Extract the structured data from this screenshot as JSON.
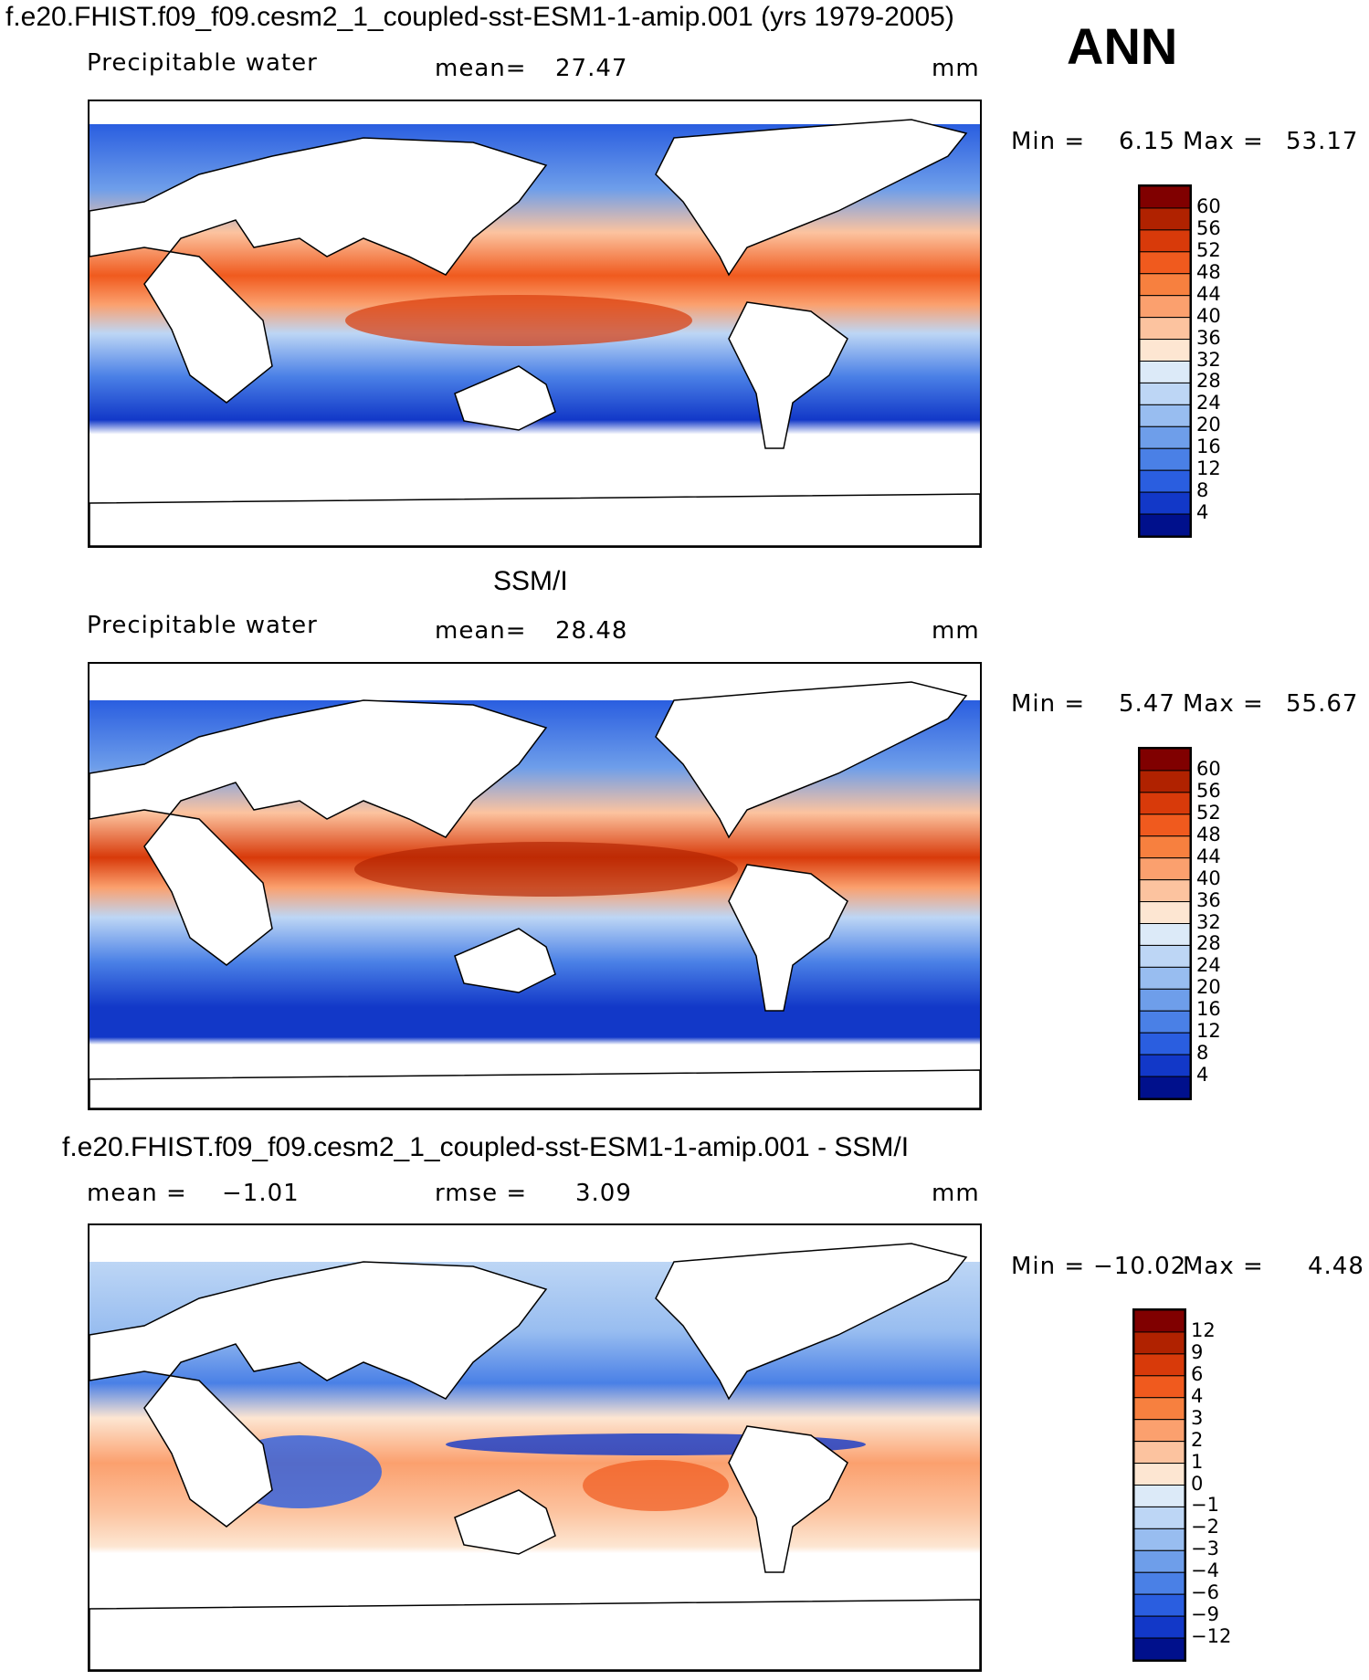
{
  "figure": {
    "title": "f.e20.FHIST.f09_f09.cesm2_1_coupled-sst-ESM1-1-amip.001 (yrs 1979-2005)",
    "season": "ANN"
  },
  "panels": [
    {
      "id": "model",
      "heading": "",
      "variable": "Precipitable water",
      "stat_label": "mean=",
      "stat_value": "27.47",
      "stat2_label": "",
      "stat2_value": "",
      "units": "mm",
      "min_label": "Min =",
      "min_value": "6.15",
      "max_label": "Max =",
      "max_value": "53.17",
      "colorbar": {
        "colors": [
          "#800000",
          "#b02200",
          "#d83a0a",
          "#f05a1e",
          "#f7803f",
          "#fba06e",
          "#fcc39f",
          "#fde6d2",
          "#dceaf8",
          "#bdd6f5",
          "#98bdf0",
          "#6e9eea",
          "#4a80e6",
          "#2a5ee0",
          "#1238c8",
          "#00108c"
        ],
        "labels": [
          "60",
          "56",
          "52",
          "48",
          "44",
          "40",
          "36",
          "32",
          "28",
          "24",
          "20",
          "16",
          "12",
          "8",
          "4"
        ]
      }
    },
    {
      "id": "obs",
      "heading": "SSM/I",
      "variable": "Precipitable water",
      "stat_label": "mean=",
      "stat_value": "28.48",
      "stat2_label": "",
      "stat2_value": "",
      "units": "mm",
      "min_label": "Min =",
      "min_value": "5.47",
      "max_label": "Max =",
      "max_value": "55.67",
      "colorbar": {
        "colors": [
          "#800000",
          "#b02200",
          "#d83a0a",
          "#f05a1e",
          "#f7803f",
          "#fba06e",
          "#fcc39f",
          "#fde6d2",
          "#dceaf8",
          "#bdd6f5",
          "#98bdf0",
          "#6e9eea",
          "#4a80e6",
          "#2a5ee0",
          "#1238c8",
          "#00108c"
        ],
        "labels": [
          "60",
          "56",
          "52",
          "48",
          "44",
          "40",
          "36",
          "32",
          "28",
          "24",
          "20",
          "16",
          "12",
          "8",
          "4"
        ]
      }
    },
    {
      "id": "diff",
      "heading": "f.e20.FHIST.f09_f09.cesm2_1_coupled-sst-ESM1-1-amip.001 - SSM/I",
      "variable": "",
      "stat_label": "mean =",
      "stat_value": "−1.01",
      "stat2_label": "rmse =",
      "stat2_value": "3.09",
      "units": "mm",
      "min_label": "Min =",
      "min_value": "−10.02",
      "max_label": "Max =",
      "max_value": "4.48",
      "colorbar": {
        "colors": [
          "#800000",
          "#b02200",
          "#d83a0a",
          "#f05a1e",
          "#f7803f",
          "#fba06e",
          "#fcc39f",
          "#fde6d2",
          "#dceaf8",
          "#bdd6f5",
          "#98bdf0",
          "#6e9eea",
          "#4a80e6",
          "#2a5ee0",
          "#1238c8",
          "#00108c"
        ],
        "labels": [
          "12",
          "9",
          "6",
          "4",
          "3",
          "2",
          "1",
          "0",
          "−1",
          "−2",
          "−3",
          "−4",
          "−6",
          "−9",
          "−12"
        ]
      }
    }
  ]
}
